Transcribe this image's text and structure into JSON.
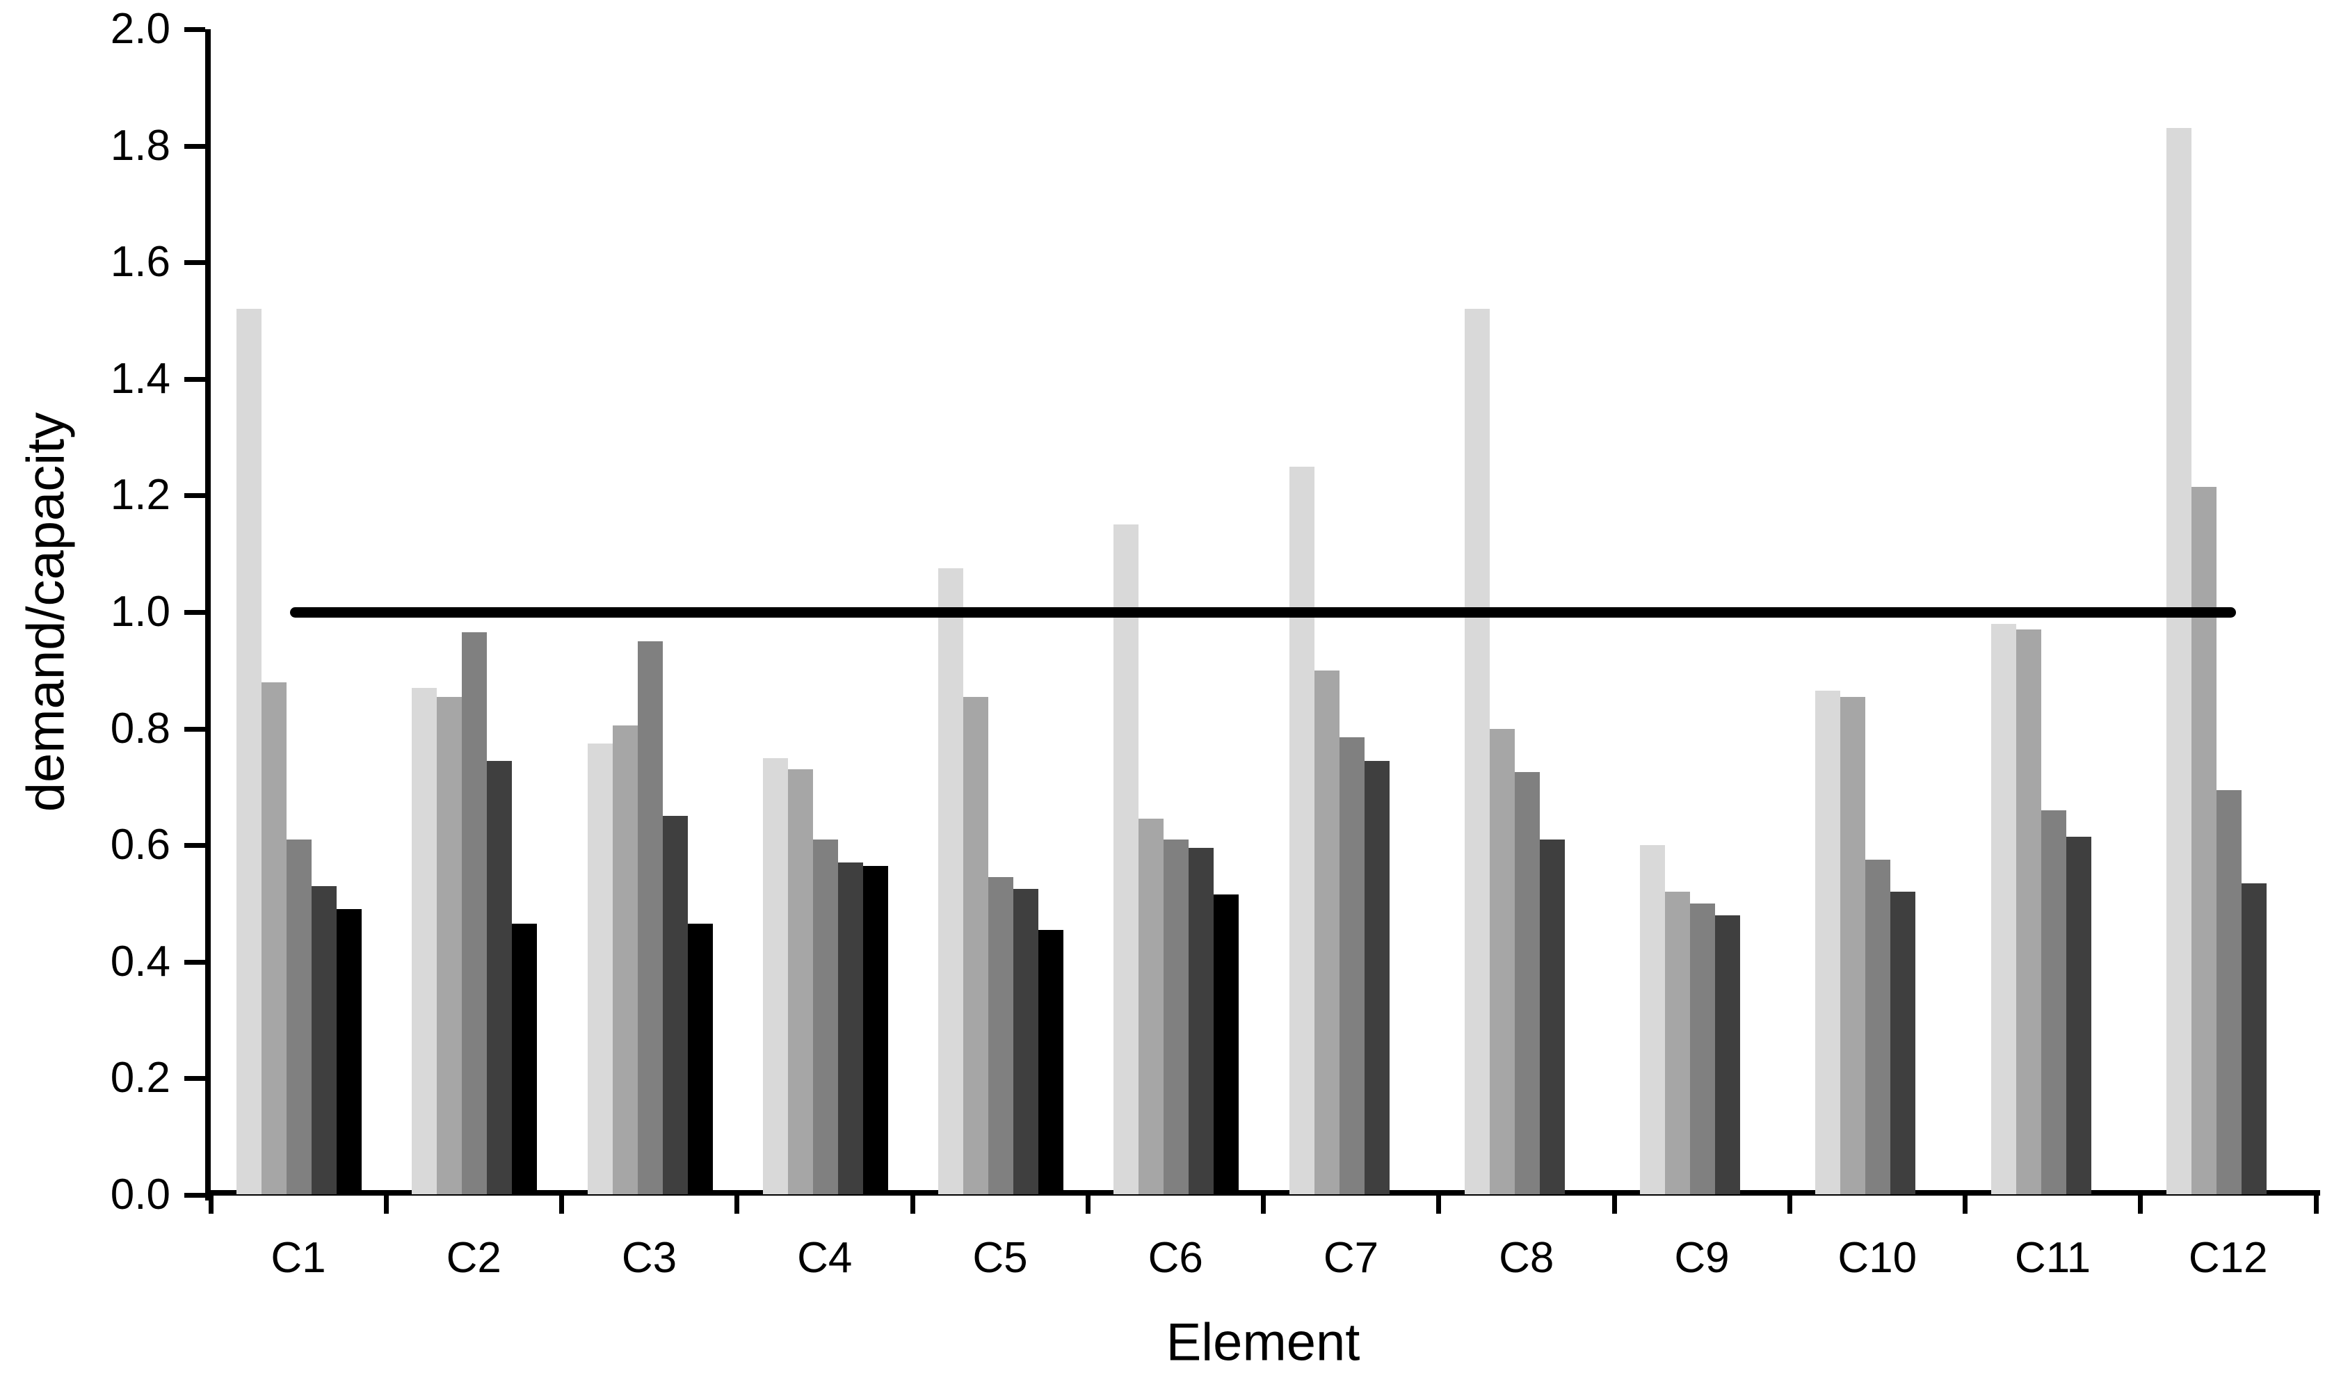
{
  "figure": {
    "background_color": "#ffffff",
    "text_color": "#000000"
  },
  "chart_data": {
    "type": "bar",
    "title": "",
    "xlabel": "Element",
    "ylabel": "demand/capacity",
    "categories": [
      "C1",
      "C2",
      "C3",
      "C4",
      "C5",
      "C6",
      "C7",
      "C8",
      "C9",
      "C10",
      "C11",
      "C12"
    ],
    "series": [
      {
        "name": "shade-1-lightest-gray",
        "color": "#d9d9d9",
        "values": [
          1.52,
          0.87,
          0.775,
          0.75,
          1.075,
          1.15,
          1.25,
          1.52,
          0.6,
          0.865,
          0.98,
          1.83
        ]
      },
      {
        "name": "shade-2-light-gray",
        "color": "#a6a6a6",
        "values": [
          0.88,
          0.855,
          0.805,
          0.73,
          0.855,
          0.645,
          0.9,
          0.8,
          0.52,
          0.855,
          0.97,
          1.215
        ]
      },
      {
        "name": "shade-3-medium-gray",
        "color": "#808080",
        "values": [
          0.61,
          0.965,
          0.95,
          0.61,
          0.545,
          0.61,
          0.785,
          0.725,
          0.5,
          0.575,
          0.66,
          0.695
        ]
      },
      {
        "name": "shade-4-dark-gray",
        "color": "#3f3f3f",
        "values": [
          0.53,
          0.745,
          0.65,
          0.57,
          0.525,
          0.595,
          0.745,
          0.61,
          0.48,
          0.52,
          0.615,
          0.535
        ]
      },
      {
        "name": "shade-5-black",
        "color": "#000000",
        "values": [
          0.49,
          0.465,
          0.465,
          0.565,
          0.455,
          0.515,
          null,
          null,
          null,
          null,
          null,
          null
        ]
      }
    ],
    "y_ticks": [
      "0.0",
      "0.2",
      "0.4",
      "0.6",
      "0.8",
      "1.0",
      "1.2",
      "1.4",
      "1.6",
      "1.8",
      "2.0"
    ],
    "ylim": [
      0.0,
      2.0
    ],
    "reference_line": {
      "value": 1.0,
      "color": "#000000"
    },
    "grid": false,
    "legend": false
  }
}
